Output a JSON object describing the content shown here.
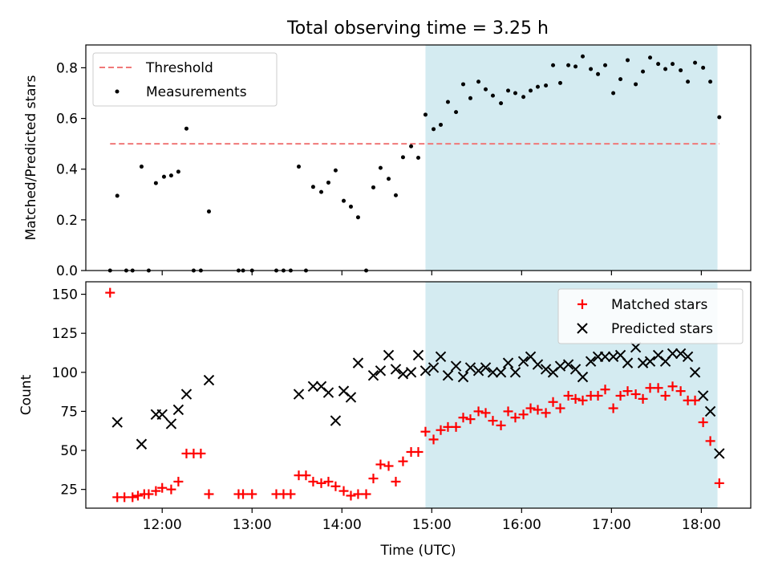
{
  "figure": {
    "title": "Total observing time = 3.25 h"
  },
  "chart_data": [
    {
      "type": "scatter",
      "ylabel": "Matched/Predicted stars",
      "xlabel": "",
      "xlim": [
        11.15,
        18.55
      ],
      "ylim": [
        0,
        0.89
      ],
      "yticks": [
        0,
        0.2,
        0.4,
        0.6,
        0.8
      ],
      "ytick_labels": [
        "0.0",
        "0.2",
        "0.4",
        "0.6",
        "0.8"
      ],
      "grid": false,
      "legend": "top-left",
      "highlight_span": {
        "x0": 14.93,
        "x1": 18.18,
        "color": "#d4ebf1"
      },
      "threshold": {
        "name": "Threshold",
        "y": 0.5,
        "x0": 11.42,
        "x1": 18.2,
        "color": "#f07878"
      },
      "series": [
        {
          "name": "Measurements",
          "color": "#000000",
          "points": [
            [
              11.42,
              0.0
            ],
            [
              11.5,
              0.295
            ],
            [
              11.6,
              0.0
            ],
            [
              11.67,
              0.0
            ],
            [
              11.77,
              0.41
            ],
            [
              11.85,
              0.0
            ],
            [
              11.93,
              0.345
            ],
            [
              12.02,
              0.37
            ],
            [
              12.1,
              0.375
            ],
            [
              12.18,
              0.39
            ],
            [
              12.27,
              0.56
            ],
            [
              12.35,
              0.0
            ],
            [
              12.43,
              0.0
            ],
            [
              12.52,
              0.233
            ],
            [
              12.85,
              0.0
            ],
            [
              12.9,
              0.0
            ],
            [
              13.0,
              0.0
            ],
            [
              13.27,
              0.0
            ],
            [
              13.35,
              0.0
            ],
            [
              13.43,
              0.0
            ],
            [
              13.52,
              0.41
            ],
            [
              13.6,
              0.0
            ],
            [
              13.68,
              0.33
            ],
            [
              13.77,
              0.31
            ],
            [
              13.85,
              0.347
            ],
            [
              13.93,
              0.395
            ],
            [
              14.02,
              0.275
            ],
            [
              14.1,
              0.252
            ],
            [
              14.18,
              0.21
            ],
            [
              14.27,
              0.0
            ],
            [
              14.35,
              0.328
            ],
            [
              14.43,
              0.405
            ],
            [
              14.52,
              0.362
            ],
            [
              14.6,
              0.297
            ],
            [
              14.68,
              0.447
            ],
            [
              14.77,
              0.49
            ],
            [
              14.85,
              0.445
            ],
            [
              14.93,
              0.615
            ],
            [
              15.02,
              0.558
            ],
            [
              15.1,
              0.575
            ],
            [
              15.18,
              0.665
            ],
            [
              15.27,
              0.625
            ],
            [
              15.35,
              0.735
            ],
            [
              15.43,
              0.68
            ],
            [
              15.52,
              0.745
            ],
            [
              15.6,
              0.715
            ],
            [
              15.68,
              0.69
            ],
            [
              15.77,
              0.66
            ],
            [
              15.85,
              0.71
            ],
            [
              15.93,
              0.7
            ],
            [
              16.02,
              0.685
            ],
            [
              16.1,
              0.71
            ],
            [
              16.18,
              0.725
            ],
            [
              16.27,
              0.73
            ],
            [
              16.35,
              0.81
            ],
            [
              16.43,
              0.74
            ],
            [
              16.52,
              0.81
            ],
            [
              16.6,
              0.805
            ],
            [
              16.68,
              0.845
            ],
            [
              16.77,
              0.795
            ],
            [
              16.85,
              0.775
            ],
            [
              16.93,
              0.81
            ],
            [
              17.02,
              0.7
            ],
            [
              17.1,
              0.755
            ],
            [
              17.18,
              0.83
            ],
            [
              17.27,
              0.735
            ],
            [
              17.35,
              0.785
            ],
            [
              17.43,
              0.84
            ],
            [
              17.52,
              0.815
            ],
            [
              17.6,
              0.795
            ],
            [
              17.68,
              0.815
            ],
            [
              17.77,
              0.79
            ],
            [
              17.85,
              0.745
            ],
            [
              17.93,
              0.82
            ],
            [
              18.02,
              0.8
            ],
            [
              18.1,
              0.745
            ],
            [
              18.2,
              0.605
            ]
          ]
        }
      ]
    },
    {
      "type": "scatter",
      "ylabel": "Count",
      "xlabel": "Time (UTC)",
      "xlim": [
        11.15,
        18.55
      ],
      "ylim": [
        13,
        158
      ],
      "xticks": [
        12,
        13,
        14,
        15,
        16,
        17,
        18
      ],
      "xtick_labels": [
        "12:00",
        "13:00",
        "14:00",
        "15:00",
        "16:00",
        "17:00",
        "18:00"
      ],
      "yticks": [
        25,
        50,
        75,
        100,
        125,
        150
      ],
      "ytick_labels": [
        "25",
        "50",
        "75",
        "100",
        "125",
        "150"
      ],
      "grid": false,
      "legend": "top-right",
      "highlight_span": {
        "x0": 14.93,
        "x1": 18.18,
        "color": "#d4ebf1"
      },
      "series": [
        {
          "name": "Matched stars",
          "marker": "+",
          "color": "#ff0000",
          "points": [
            [
              11.42,
              151
            ],
            [
              11.5,
              20
            ],
            [
              11.58,
              20
            ],
            [
              11.67,
              20
            ],
            [
              11.73,
              21
            ],
            [
              11.8,
              22
            ],
            [
              11.85,
              22
            ],
            [
              11.93,
              24
            ],
            [
              12.0,
              26
            ],
            [
              12.1,
              25
            ],
            [
              12.18,
              30
            ],
            [
              12.27,
              48
            ],
            [
              12.35,
              48
            ],
            [
              12.43,
              48
            ],
            [
              12.52,
              22
            ],
            [
              12.85,
              22
            ],
            [
              12.9,
              22
            ],
            [
              13.0,
              22
            ],
            [
              13.27,
              22
            ],
            [
              13.35,
              22
            ],
            [
              13.43,
              22
            ],
            [
              13.52,
              34
            ],
            [
              13.6,
              34
            ],
            [
              13.68,
              30
            ],
            [
              13.77,
              29
            ],
            [
              13.85,
              30
            ],
            [
              13.93,
              27
            ],
            [
              14.02,
              24
            ],
            [
              14.1,
              21
            ],
            [
              14.18,
              22
            ],
            [
              14.27,
              22
            ],
            [
              14.35,
              32
            ],
            [
              14.43,
              41
            ],
            [
              14.52,
              40
            ],
            [
              14.6,
              30
            ],
            [
              14.68,
              43
            ],
            [
              14.77,
              49
            ],
            [
              14.85,
              49
            ],
            [
              14.93,
              62
            ],
            [
              15.02,
              57
            ],
            [
              15.1,
              63
            ],
            [
              15.18,
              65
            ],
            [
              15.27,
              65
            ],
            [
              15.35,
              71
            ],
            [
              15.43,
              70
            ],
            [
              15.52,
              75
            ],
            [
              15.6,
              74
            ],
            [
              15.68,
              69
            ],
            [
              15.77,
              66
            ],
            [
              15.85,
              75
            ],
            [
              15.93,
              71
            ],
            [
              16.02,
              73
            ],
            [
              16.1,
              77
            ],
            [
              16.18,
              76
            ],
            [
              16.27,
              74
            ],
            [
              16.35,
              81
            ],
            [
              16.43,
              77
            ],
            [
              16.52,
              85
            ],
            [
              16.6,
              83
            ],
            [
              16.68,
              82
            ],
            [
              16.77,
              85
            ],
            [
              16.85,
              85
            ],
            [
              16.93,
              89
            ],
            [
              17.02,
              77
            ],
            [
              17.1,
              85
            ],
            [
              17.18,
              88
            ],
            [
              17.27,
              86
            ],
            [
              17.35,
              83
            ],
            [
              17.43,
              90
            ],
            [
              17.52,
              90
            ],
            [
              17.6,
              85
            ],
            [
              17.68,
              91
            ],
            [
              17.77,
              88
            ],
            [
              17.85,
              82
            ],
            [
              17.93,
              82
            ],
            [
              18.02,
              68
            ],
            [
              18.1,
              56
            ],
            [
              18.2,
              29
            ]
          ]
        },
        {
          "name": "Predicted stars",
          "marker": "x",
          "color": "#000000",
          "points": [
            [
              11.5,
              68
            ],
            [
              11.77,
              54
            ],
            [
              11.93,
              73
            ],
            [
              12.0,
              73
            ],
            [
              12.1,
              67
            ],
            [
              12.18,
              76
            ],
            [
              12.27,
              86
            ],
            [
              12.52,
              95
            ],
            [
              13.52,
              86
            ],
            [
              13.68,
              91
            ],
            [
              13.77,
              91
            ],
            [
              13.85,
              87
            ],
            [
              13.93,
              69
            ],
            [
              14.02,
              88
            ],
            [
              14.1,
              84
            ],
            [
              14.18,
              106
            ],
            [
              14.35,
              98
            ],
            [
              14.43,
              101
            ],
            [
              14.52,
              111
            ],
            [
              14.6,
              102
            ],
            [
              14.68,
              99
            ],
            [
              14.77,
              100
            ],
            [
              14.85,
              111
            ],
            [
              14.93,
              101
            ],
            [
              15.02,
              103
            ],
            [
              15.1,
              110
            ],
            [
              15.18,
              98
            ],
            [
              15.27,
              104
            ],
            [
              15.35,
              97
            ],
            [
              15.43,
              103
            ],
            [
              15.52,
              101
            ],
            [
              15.6,
              103
            ],
            [
              15.68,
              100
            ],
            [
              15.77,
              100
            ],
            [
              15.85,
              106
            ],
            [
              15.93,
              100
            ],
            [
              16.02,
              107
            ],
            [
              16.1,
              110
            ],
            [
              16.18,
              105
            ],
            [
              16.27,
              102
            ],
            [
              16.35,
              100
            ],
            [
              16.43,
              104
            ],
            [
              16.52,
              105
            ],
            [
              16.6,
              102
            ],
            [
              16.68,
              97
            ],
            [
              16.77,
              107
            ],
            [
              16.85,
              110
            ],
            [
              16.93,
              110
            ],
            [
              17.02,
              110
            ],
            [
              17.1,
              111
            ],
            [
              17.18,
              106
            ],
            [
              17.27,
              116
            ],
            [
              17.35,
              106
            ],
            [
              17.43,
              107
            ],
            [
              17.52,
              111
            ],
            [
              17.6,
              107
            ],
            [
              17.68,
              112
            ],
            [
              17.77,
              112
            ],
            [
              17.85,
              110
            ],
            [
              17.93,
              100
            ],
            [
              18.02,
              85
            ],
            [
              18.1,
              75
            ],
            [
              18.2,
              48
            ]
          ]
        }
      ]
    }
  ]
}
